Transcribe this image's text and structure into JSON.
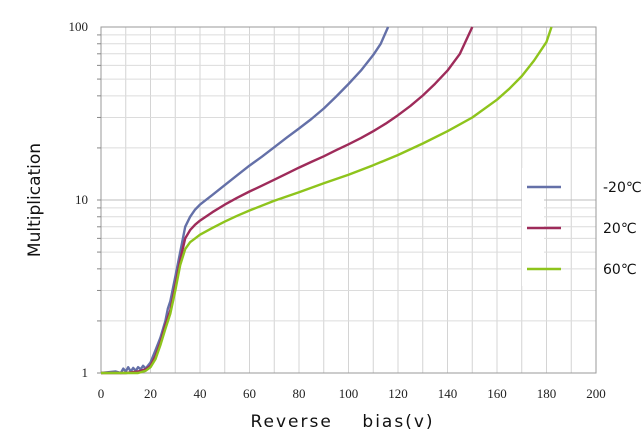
{
  "chart_data": {
    "type": "line",
    "title": "",
    "xlabel": "Reverse    bias(v)",
    "ylabel": "Multiplication",
    "xlim": [
      0,
      200
    ],
    "ylim": [
      1,
      100
    ],
    "y_scale": "log",
    "x_ticks": [
      "0",
      "20",
      "40",
      "60",
      "80",
      "100",
      "120",
      "140",
      "160",
      "180",
      "200"
    ],
    "y_ticks": [
      "1",
      "10",
      "100"
    ],
    "grid": true,
    "legend_position": "right",
    "series": [
      {
        "name": "-20℃",
        "color": "#6470a8",
        "x": [
          0,
          6,
          8,
          9,
          10,
          11,
          12,
          13,
          14,
          15,
          16,
          17,
          18,
          20,
          22,
          24,
          26,
          27,
          28,
          30,
          32,
          34,
          36,
          38,
          40,
          45,
          50,
          55,
          60,
          65,
          70,
          75,
          80,
          85,
          90,
          95,
          100,
          105,
          110,
          113,
          116
        ],
        "y": [
          1.0,
          1.02,
          1.0,
          1.06,
          1.02,
          1.08,
          1.02,
          1.07,
          1.03,
          1.08,
          1.05,
          1.1,
          1.06,
          1.15,
          1.35,
          1.6,
          2.0,
          2.35,
          2.6,
          3.6,
          5.0,
          7.0,
          8.0,
          8.8,
          9.4,
          10.7,
          12.2,
          13.9,
          15.8,
          17.8,
          20.2,
          22.9,
          25.9,
          29.4,
          33.8,
          39.6,
          46.8,
          56.0,
          69.0,
          80.0,
          100.0
        ]
      },
      {
        "name": "20℃",
        "color": "#9e2b5a",
        "x": [
          0,
          10,
          15,
          18,
          20,
          22,
          24,
          26,
          28,
          30,
          32,
          34,
          36,
          38,
          40,
          45,
          50,
          55,
          60,
          65,
          70,
          75,
          80,
          85,
          90,
          95,
          100,
          105,
          110,
          115,
          120,
          125,
          130,
          135,
          140,
          145,
          150
        ],
        "y": [
          1.0,
          1.0,
          1.02,
          1.05,
          1.1,
          1.25,
          1.5,
          1.9,
          2.3,
          3.2,
          4.5,
          6.0,
          6.7,
          7.2,
          7.6,
          8.5,
          9.4,
          10.3,
          11.2,
          12.1,
          13.1,
          14.2,
          15.4,
          16.6,
          17.9,
          19.4,
          21.0,
          22.8,
          25.0,
          27.6,
          30.9,
          35.0,
          40.2,
          47.0,
          56.0,
          70.0,
          100.0
        ]
      },
      {
        "name": "60℃",
        "color": "#8ec41c",
        "x": [
          0,
          10,
          15,
          18,
          20,
          22,
          24,
          26,
          28,
          30,
          32,
          34,
          36,
          38,
          40,
          45,
          50,
          55,
          60,
          70,
          80,
          90,
          100,
          110,
          120,
          130,
          140,
          150,
          160,
          165,
          170,
          175,
          180,
          182
        ],
        "y": [
          1.0,
          1.0,
          1.0,
          1.03,
          1.08,
          1.2,
          1.45,
          1.8,
          2.2,
          3.0,
          4.2,
          5.2,
          5.7,
          6.0,
          6.3,
          6.9,
          7.5,
          8.1,
          8.7,
          9.9,
          11.1,
          12.5,
          14.0,
          15.9,
          18.2,
          21.2,
          25.0,
          30.0,
          38.0,
          44.0,
          52.0,
          64.0,
          82.0,
          100.0
        ]
      }
    ]
  }
}
